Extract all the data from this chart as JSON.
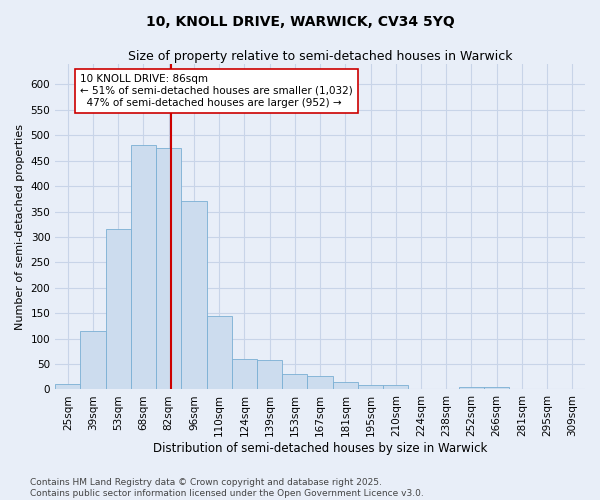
{
  "title1": "10, KNOLL DRIVE, WARWICK, CV34 5YQ",
  "title2": "Size of property relative to semi-detached houses in Warwick",
  "xlabel": "Distribution of semi-detached houses by size in Warwick",
  "ylabel": "Number of semi-detached properties",
  "bins": [
    "25sqm",
    "39sqm",
    "53sqm",
    "68sqm",
    "82sqm",
    "96sqm",
    "110sqm",
    "124sqm",
    "139sqm",
    "153sqm",
    "167sqm",
    "181sqm",
    "195sqm",
    "210sqm",
    "224sqm",
    "238sqm",
    "252sqm",
    "266sqm",
    "281sqm",
    "295sqm",
    "309sqm"
  ],
  "values": [
    10,
    115,
    315,
    480,
    475,
    370,
    145,
    60,
    58,
    30,
    27,
    15,
    8,
    8,
    0,
    0,
    5,
    5,
    0,
    0,
    0
  ],
  "bar_color": "#ccdcee",
  "bar_edge_color": "#7aafd4",
  "vline_x_index": 4,
  "vline_color": "#cc0000",
  "annotation_text": "10 KNOLL DRIVE: 86sqm\n← 51% of semi-detached houses are smaller (1,032)\n  47% of semi-detached houses are larger (952) →",
  "annotation_box_color": "#ffffff",
  "annotation_box_edge_color": "#cc0000",
  "ylim": [
    0,
    640
  ],
  "yticks": [
    0,
    50,
    100,
    150,
    200,
    250,
    300,
    350,
    400,
    450,
    500,
    550,
    600
  ],
  "grid_color": "#c8d4e8",
  "background_color": "#e8eef8",
  "footer": "Contains HM Land Registry data © Crown copyright and database right 2025.\nContains public sector information licensed under the Open Government Licence v3.0.",
  "title1_fontsize": 10,
  "title2_fontsize": 9,
  "xlabel_fontsize": 8.5,
  "ylabel_fontsize": 8,
  "tick_fontsize": 7.5,
  "annotation_fontsize": 7.5,
  "footer_fontsize": 6.5
}
